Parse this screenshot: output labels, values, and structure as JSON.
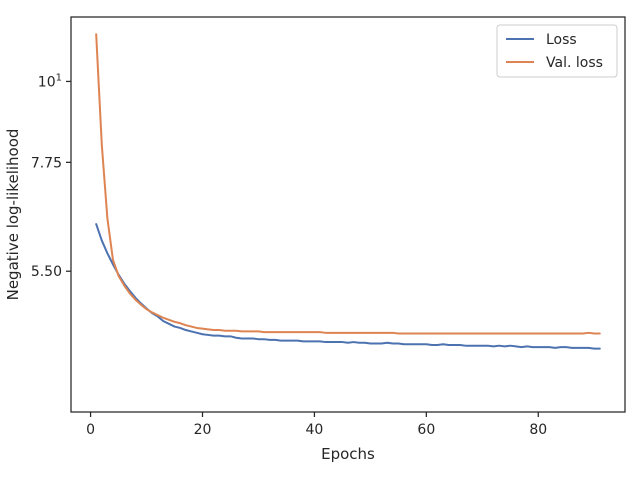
{
  "chart_data": {
    "type": "line",
    "title": "",
    "xlabel": "Epochs",
    "ylabel": "Negative log-likelihood",
    "xlim": [
      -3.5,
      95.5
    ],
    "ylim": [
      3.53,
      12.25
    ],
    "y_scale": "log",
    "grid": false,
    "legend_position": "top-right",
    "x_ticks": [
      {
        "value": 0,
        "label": "0"
      },
      {
        "value": 20,
        "label": "20"
      },
      {
        "value": 40,
        "label": "40"
      },
      {
        "value": 60,
        "label": "60"
      },
      {
        "value": 80,
        "label": "80"
      }
    ],
    "y_ticks": [
      {
        "value": 5.5,
        "label": "5.50"
      },
      {
        "value": 7.75,
        "label": "7.75"
      },
      {
        "value": 10,
        "label": "10",
        "superscript": "1"
      }
    ],
    "series": [
      {
        "name": "Loss",
        "color": "#4c72b0",
        "x": [
          1,
          2,
          3,
          4,
          5,
          6,
          7,
          8,
          9,
          10,
          11,
          12,
          13,
          14,
          15,
          16,
          17,
          18,
          19,
          20,
          21,
          22,
          23,
          24,
          25,
          26,
          27,
          28,
          29,
          30,
          31,
          32,
          33,
          34,
          35,
          36,
          37,
          38,
          39,
          40,
          41,
          42,
          43,
          44,
          45,
          46,
          47,
          48,
          49,
          50,
          51,
          52,
          53,
          54,
          55,
          56,
          57,
          58,
          59,
          60,
          61,
          62,
          63,
          64,
          65,
          66,
          67,
          68,
          69,
          70,
          71,
          72,
          73,
          74,
          75,
          76,
          77,
          78,
          79,
          80,
          81,
          82,
          83,
          84,
          85,
          86,
          87,
          88,
          89,
          90,
          91
        ],
        "y": [
          6.38,
          6.06,
          5.82,
          5.62,
          5.44,
          5.29,
          5.17,
          5.06,
          4.97,
          4.89,
          4.82,
          4.77,
          4.7,
          4.66,
          4.62,
          4.6,
          4.57,
          4.55,
          4.53,
          4.51,
          4.5,
          4.49,
          4.49,
          4.48,
          4.48,
          4.46,
          4.45,
          4.45,
          4.45,
          4.44,
          4.44,
          4.43,
          4.43,
          4.42,
          4.42,
          4.42,
          4.42,
          4.41,
          4.41,
          4.41,
          4.41,
          4.4,
          4.4,
          4.4,
          4.4,
          4.39,
          4.4,
          4.39,
          4.39,
          4.38,
          4.38,
          4.38,
          4.39,
          4.38,
          4.38,
          4.37,
          4.37,
          4.37,
          4.37,
          4.37,
          4.36,
          4.36,
          4.37,
          4.36,
          4.36,
          4.36,
          4.35,
          4.35,
          4.35,
          4.35,
          4.35,
          4.34,
          4.35,
          4.34,
          4.35,
          4.34,
          4.33,
          4.34,
          4.33,
          4.33,
          4.33,
          4.33,
          4.32,
          4.33,
          4.33,
          4.32,
          4.32,
          4.32,
          4.32,
          4.31,
          4.31
        ]
      },
      {
        "name": "Val. loss",
        "color": "#dd8452",
        "x": [
          1,
          2,
          3,
          4,
          5,
          6,
          7,
          8,
          9,
          10,
          11,
          12,
          13,
          14,
          15,
          16,
          17,
          18,
          19,
          20,
          21,
          22,
          23,
          24,
          25,
          26,
          27,
          28,
          29,
          30,
          31,
          32,
          33,
          34,
          35,
          36,
          37,
          38,
          39,
          40,
          41,
          42,
          43,
          44,
          45,
          46,
          47,
          48,
          49,
          50,
          51,
          52,
          53,
          54,
          55,
          56,
          57,
          58,
          59,
          60,
          61,
          62,
          63,
          64,
          65,
          66,
          67,
          68,
          69,
          70,
          71,
          72,
          73,
          74,
          75,
          76,
          77,
          78,
          79,
          80,
          81,
          82,
          83,
          84,
          85,
          86,
          87,
          88,
          89,
          90,
          91
        ],
        "y": [
          11.6,
          8.2,
          6.5,
          5.7,
          5.42,
          5.26,
          5.13,
          5.03,
          4.95,
          4.88,
          4.83,
          4.79,
          4.75,
          4.72,
          4.69,
          4.67,
          4.64,
          4.62,
          4.6,
          4.59,
          4.58,
          4.57,
          4.57,
          4.56,
          4.56,
          4.56,
          4.55,
          4.55,
          4.55,
          4.55,
          4.54,
          4.54,
          4.54,
          4.54,
          4.54,
          4.54,
          4.54,
          4.54,
          4.54,
          4.54,
          4.54,
          4.53,
          4.53,
          4.53,
          4.53,
          4.53,
          4.53,
          4.53,
          4.53,
          4.53,
          4.53,
          4.53,
          4.53,
          4.53,
          4.52,
          4.52,
          4.52,
          4.52,
          4.52,
          4.52,
          4.52,
          4.52,
          4.52,
          4.52,
          4.52,
          4.52,
          4.52,
          4.52,
          4.52,
          4.52,
          4.52,
          4.52,
          4.52,
          4.52,
          4.52,
          4.52,
          4.52,
          4.52,
          4.52,
          4.52,
          4.52,
          4.52,
          4.52,
          4.52,
          4.52,
          4.52,
          4.52,
          4.52,
          4.53,
          4.52,
          4.52
        ]
      }
    ]
  }
}
